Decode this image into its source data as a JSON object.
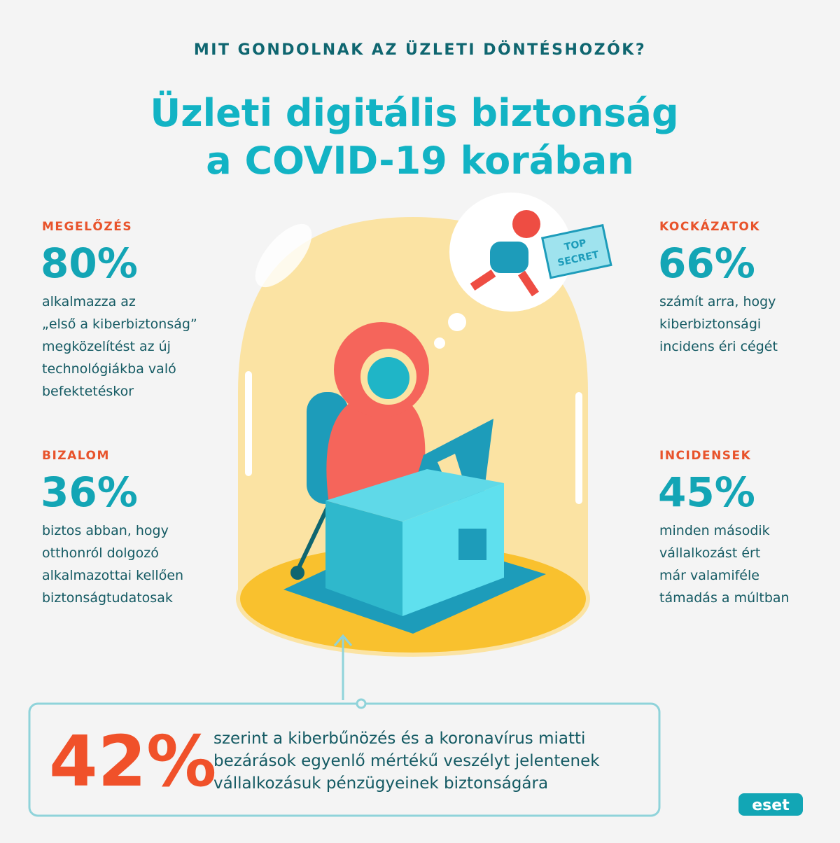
{
  "header": {
    "kicker": "MIT GONDOLNAK AZ ÜZLETI DÖNTÉSHOZÓK?",
    "title_lines": [
      "Üzleti digitális biztonság",
      "a COVID-19 korában"
    ]
  },
  "stats": [
    {
      "label": "MEGELŐZÉS",
      "value": "80%",
      "lines": [
        "alkalmazza az",
        "„első a kiberbiztonság”",
        "megközelítést az új",
        "technológiákba való",
        "befektetéskor"
      ]
    },
    {
      "label": "KOCKÁZATOK",
      "value": "66%",
      "lines": [
        "számít arra, hogy",
        "kiberbiztonsági",
        "incidens éri cégét"
      ]
    },
    {
      "label": "BIZALOM",
      "value": "36%",
      "lines": [
        "biztos abban, hogy",
        "otthonról dolgozó",
        "alkalmazottai kellően",
        "biztonságtudatosak"
      ]
    },
    {
      "label": "INCIDENSEK",
      "value": "45%",
      "lines": [
        "minden második",
        "vállalkozást ért",
        "már valamiféle",
        "támadás a múltban"
      ]
    }
  ],
  "illustration": {
    "envelope_lines": [
      "TOP",
      "SECRET"
    ]
  },
  "callout": {
    "value": "42%",
    "lines": [
      "szerint a kiberbűnözés és a koronavírus miatti",
      "bezárások egyenlő mértékű veszélyt jelentenek",
      "vállalkozásuk pénzügyeinek biztonságára"
    ]
  },
  "logo": "eset"
}
